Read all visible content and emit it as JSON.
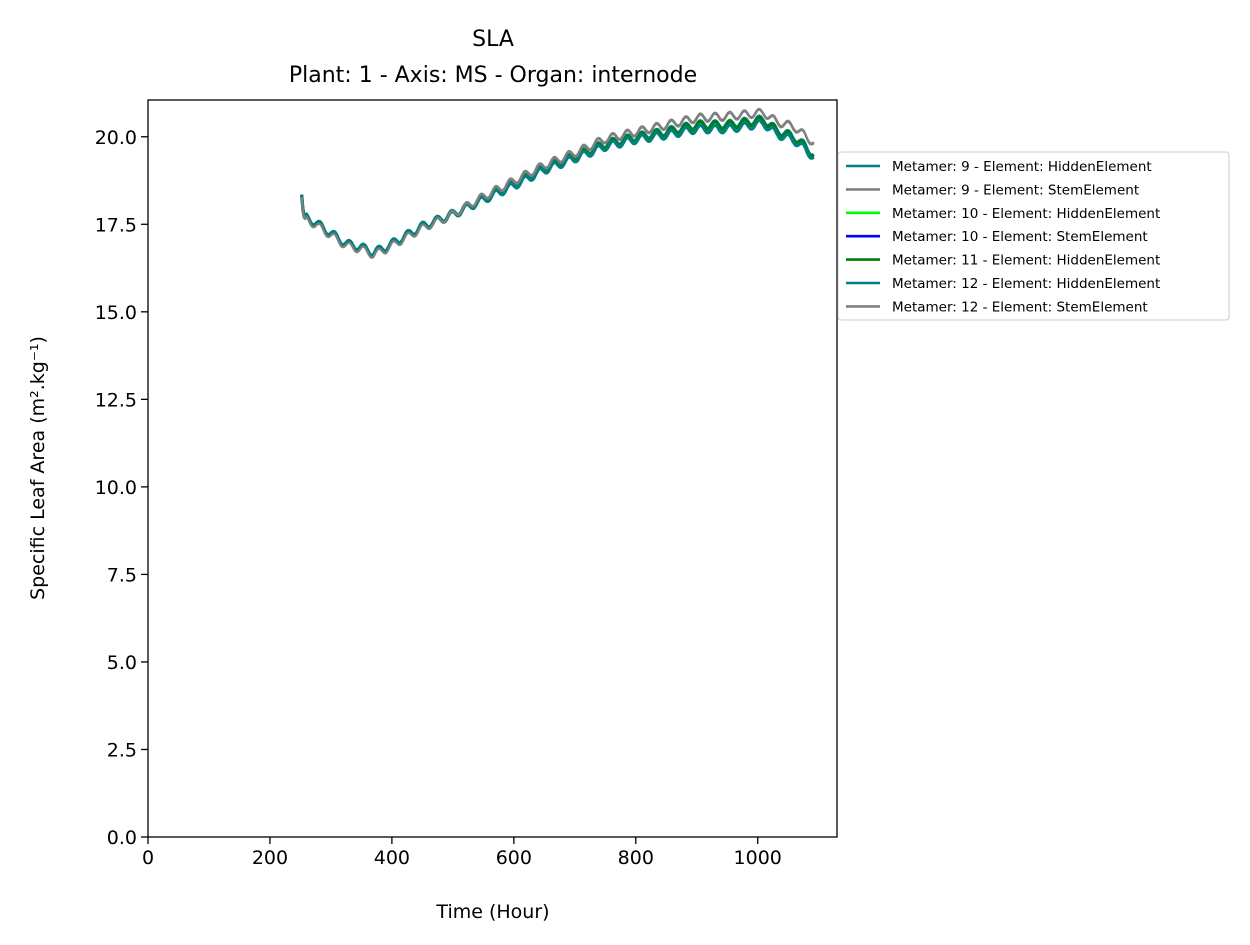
{
  "chart_data": {
    "type": "line",
    "title": "SLA",
    "subtitle": "Plant: 1 - Axis: MS - Organ: internode",
    "xlabel": "Time (Hour)",
    "ylabel": "Specific Leaf Area (m².kg⁻¹)",
    "xlim": [
      0,
      1130
    ],
    "ylim": [
      0,
      21.05
    ],
    "xticks": [
      0,
      200,
      400,
      600,
      800,
      1000
    ],
    "yticks": [
      0.0,
      2.5,
      5.0,
      7.5,
      10.0,
      12.5,
      15.0,
      17.5,
      20.0
    ],
    "xtick_labels": [
      "0",
      "200",
      "400",
      "600",
      "800",
      "1000"
    ],
    "ytick_labels": [
      "0.0",
      "2.5",
      "5.0",
      "7.5",
      "10.0",
      "12.5",
      "15.0",
      "17.5",
      "20.0"
    ],
    "legend_position": "outside right",
    "x_range": [
      252,
      1092
    ],
    "series": [
      {
        "name": "Metamer: 9 - Element: HiddenElement",
        "color": "#008080",
        "points": [
          [
            252,
            18.35
          ],
          [
            255,
            17.75
          ],
          [
            275,
            17.55
          ],
          [
            300,
            17.25
          ],
          [
            325,
            16.95
          ],
          [
            350,
            16.85
          ],
          [
            370,
            16.7
          ],
          [
            390,
            16.85
          ],
          [
            420,
            17.15
          ],
          [
            450,
            17.45
          ],
          [
            500,
            17.8
          ],
          [
            550,
            18.25
          ],
          [
            600,
            18.65
          ],
          [
            650,
            19.1
          ],
          [
            700,
            19.45
          ],
          [
            750,
            19.8
          ],
          [
            800,
            20.0
          ],
          [
            850,
            20.15
          ],
          [
            900,
            20.35
          ],
          [
            950,
            20.35
          ],
          [
            1010,
            20.5
          ],
          [
            1030,
            20.2
          ],
          [
            1060,
            20.0
          ],
          [
            1080,
            19.7
          ],
          [
            1092,
            19.5
          ]
        ]
      },
      {
        "name": "Metamer: 9 - Element: StemElement",
        "color": "#808080",
        "points": [
          [
            252,
            18.3
          ],
          [
            255,
            17.7
          ],
          [
            275,
            17.5
          ],
          [
            300,
            17.2
          ],
          [
            325,
            16.9
          ],
          [
            350,
            16.8
          ],
          [
            370,
            16.65
          ],
          [
            390,
            16.8
          ],
          [
            420,
            17.1
          ],
          [
            450,
            17.4
          ],
          [
            500,
            17.8
          ],
          [
            550,
            18.3
          ],
          [
            600,
            18.75
          ],
          [
            650,
            19.2
          ],
          [
            700,
            19.55
          ],
          [
            750,
            19.95
          ],
          [
            800,
            20.15
          ],
          [
            850,
            20.35
          ],
          [
            900,
            20.55
          ],
          [
            950,
            20.6
          ],
          [
            1010,
            20.7
          ],
          [
            1030,
            20.45
          ],
          [
            1060,
            20.3
          ],
          [
            1080,
            20.0
          ],
          [
            1092,
            19.85
          ]
        ]
      },
      {
        "name": "Metamer: 10 - Element: HiddenElement",
        "color": "#00ff00",
        "points": [
          [
            252,
            18.3
          ],
          [
            255,
            17.7
          ],
          [
            275,
            17.5
          ],
          [
            300,
            17.2
          ],
          [
            325,
            16.9
          ],
          [
            350,
            16.8
          ],
          [
            370,
            16.65
          ],
          [
            390,
            16.8
          ],
          [
            420,
            17.1
          ],
          [
            450,
            17.4
          ],
          [
            500,
            17.75
          ],
          [
            550,
            18.2
          ],
          [
            600,
            18.6
          ],
          [
            650,
            19.05
          ],
          [
            700,
            19.4
          ],
          [
            750,
            19.75
          ],
          [
            800,
            19.95
          ],
          [
            850,
            20.1
          ],
          [
            900,
            20.3
          ],
          [
            950,
            20.3
          ],
          [
            1010,
            20.45
          ],
          [
            1030,
            20.15
          ],
          [
            1060,
            19.95
          ],
          [
            1080,
            19.65
          ],
          [
            1092,
            19.45
          ]
        ]
      },
      {
        "name": "Metamer: 10 - Element: StemElement",
        "color": "#0000ff",
        "points": [
          [
            252,
            18.32
          ],
          [
            255,
            17.72
          ],
          [
            275,
            17.52
          ],
          [
            300,
            17.22
          ],
          [
            325,
            16.92
          ],
          [
            350,
            16.82
          ],
          [
            370,
            16.67
          ],
          [
            390,
            16.82
          ],
          [
            420,
            17.12
          ],
          [
            450,
            17.42
          ],
          [
            500,
            17.77
          ],
          [
            550,
            18.22
          ],
          [
            600,
            18.62
          ],
          [
            650,
            19.07
          ],
          [
            700,
            19.42
          ],
          [
            750,
            19.77
          ],
          [
            800,
            19.97
          ],
          [
            850,
            20.12
          ],
          [
            900,
            20.32
          ],
          [
            950,
            20.32
          ],
          [
            1010,
            20.47
          ],
          [
            1030,
            20.17
          ],
          [
            1060,
            19.97
          ],
          [
            1080,
            19.67
          ],
          [
            1092,
            19.47
          ]
        ]
      },
      {
        "name": "Metamer: 11 - Element: HiddenElement",
        "color": "#008000",
        "points": [
          [
            252,
            18.33
          ],
          [
            255,
            17.73
          ],
          [
            275,
            17.53
          ],
          [
            300,
            17.23
          ],
          [
            325,
            16.93
          ],
          [
            350,
            16.83
          ],
          [
            370,
            16.68
          ],
          [
            390,
            16.83
          ],
          [
            420,
            17.13
          ],
          [
            450,
            17.43
          ],
          [
            500,
            17.78
          ],
          [
            550,
            18.23
          ],
          [
            600,
            18.63
          ],
          [
            650,
            19.08
          ],
          [
            700,
            19.43
          ],
          [
            750,
            19.78
          ],
          [
            800,
            19.98
          ],
          [
            850,
            20.13
          ],
          [
            900,
            20.33
          ],
          [
            950,
            20.33
          ],
          [
            1010,
            20.48
          ],
          [
            1030,
            20.18
          ],
          [
            1060,
            19.98
          ],
          [
            1080,
            19.68
          ],
          [
            1092,
            19.48
          ]
        ]
      },
      {
        "name": "Metamer: 12 - Element: HiddenElement",
        "color": "#008080",
        "points": [
          [
            252,
            18.3
          ],
          [
            255,
            17.72
          ],
          [
            275,
            17.52
          ],
          [
            300,
            17.22
          ],
          [
            325,
            16.92
          ],
          [
            350,
            16.82
          ],
          [
            370,
            16.67
          ],
          [
            390,
            16.82
          ],
          [
            420,
            17.12
          ],
          [
            450,
            17.42
          ],
          [
            500,
            17.77
          ],
          [
            550,
            18.2
          ],
          [
            600,
            18.6
          ],
          [
            650,
            19.05
          ],
          [
            700,
            19.38
          ],
          [
            750,
            19.72
          ],
          [
            800,
            19.92
          ],
          [
            850,
            20.05
          ],
          [
            900,
            20.22
          ],
          [
            950,
            20.22
          ],
          [
            1010,
            20.38
          ],
          [
            1030,
            20.08
          ],
          [
            1060,
            19.9
          ],
          [
            1080,
            19.6
          ],
          [
            1092,
            19.42
          ]
        ]
      },
      {
        "name": "Metamer: 12 - Element: StemElement",
        "color": "#808080",
        "points": [
          [
            252,
            18.28
          ],
          [
            255,
            17.68
          ],
          [
            275,
            17.48
          ],
          [
            300,
            17.18
          ],
          [
            325,
            16.88
          ],
          [
            350,
            16.78
          ],
          [
            370,
            16.63
          ],
          [
            390,
            16.78
          ],
          [
            420,
            17.08
          ],
          [
            450,
            17.38
          ],
          [
            500,
            17.78
          ],
          [
            550,
            18.28
          ],
          [
            600,
            18.72
          ],
          [
            650,
            19.18
          ],
          [
            700,
            19.52
          ],
          [
            750,
            19.92
          ],
          [
            800,
            20.12
          ],
          [
            850,
            20.32
          ],
          [
            900,
            20.52
          ],
          [
            950,
            20.57
          ],
          [
            1010,
            20.68
          ],
          [
            1030,
            20.42
          ],
          [
            1060,
            20.27
          ],
          [
            1080,
            19.98
          ],
          [
            1092,
            19.82
          ]
        ]
      }
    ]
  }
}
